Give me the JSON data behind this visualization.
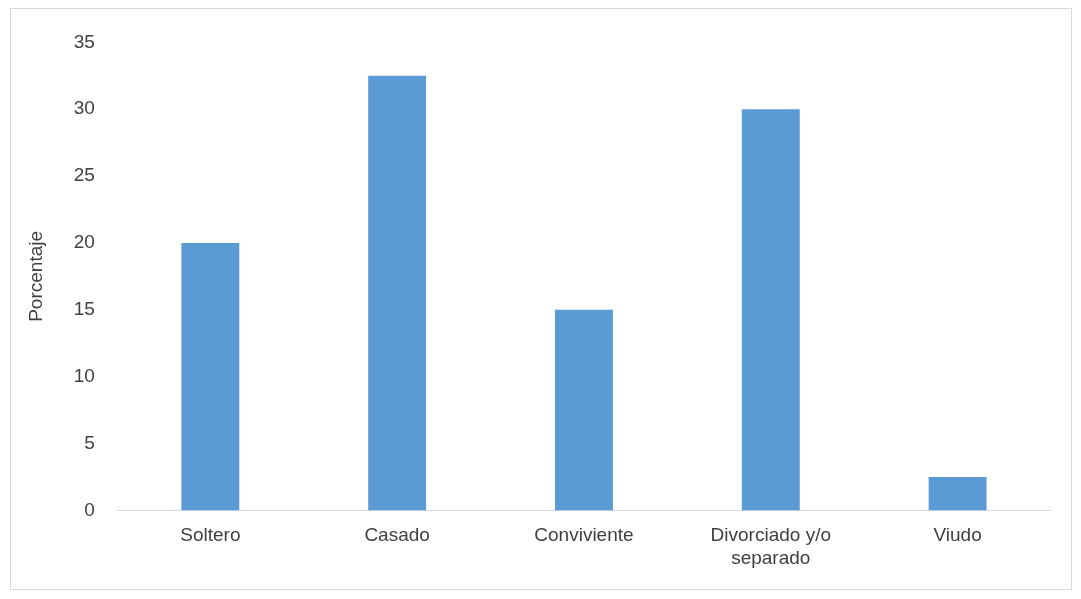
{
  "chart_data": {
    "type": "bar",
    "ylabel": "Porcentaje",
    "categories": [
      "Soltero",
      "Casado",
      "Conviviente",
      "Divorciado y/o separado",
      "Viudo"
    ],
    "values": [
      20,
      32.5,
      15,
      30,
      2.5
    ],
    "color": "#5b9bd5",
    "ylim": [
      0,
      35
    ],
    "yticks": [
      0,
      5,
      10,
      15,
      20,
      25,
      30,
      35
    ],
    "grid": false,
    "legend": false
  }
}
